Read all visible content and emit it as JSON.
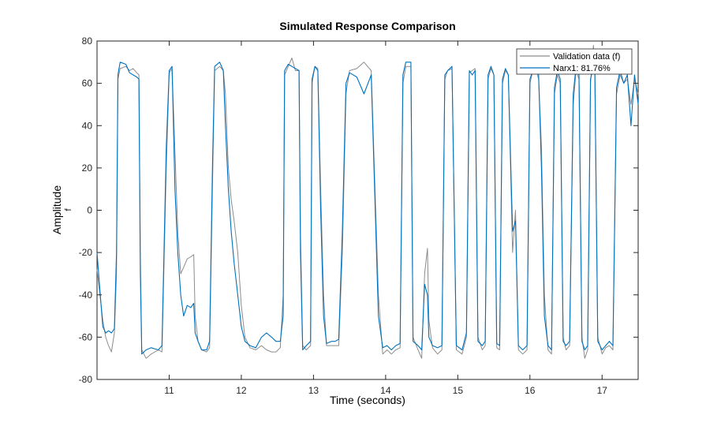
{
  "chart_data": {
    "type": "line",
    "title": "Simulated Response Comparison",
    "xlabel": "Time (seconds)",
    "ylabel": "Amplitude",
    "ylabel_sub": "f",
    "xlim": [
      10,
      17.5
    ],
    "ylim": [
      -80,
      80
    ],
    "x_ticks": [
      11,
      12,
      13,
      14,
      15,
      16,
      17
    ],
    "y_ticks": [
      -80,
      -60,
      -40,
      -20,
      0,
      20,
      40,
      60,
      80
    ],
    "grid": false,
    "legend_position": "top-right",
    "colors": {
      "validation": "#8c8c8c",
      "narx": "#0072bd",
      "axes": "#262626"
    },
    "series": [
      {
        "name": "Validation data (f)",
        "color": "#8c8c8c",
        "points": [
          [
            10.0,
            -28
          ],
          [
            10.04,
            -40
          ],
          [
            10.08,
            -52
          ],
          [
            10.12,
            -60
          ],
          [
            10.16,
            -64
          ],
          [
            10.2,
            -67
          ],
          [
            10.24,
            -58
          ],
          [
            10.27,
            -30
          ],
          [
            10.29,
            62
          ],
          [
            10.32,
            67
          ],
          [
            10.4,
            68
          ],
          [
            10.45,
            66
          ],
          [
            10.5,
            67
          ],
          [
            10.55,
            65
          ],
          [
            10.58,
            64
          ],
          [
            10.6,
            -20
          ],
          [
            10.62,
            -66
          ],
          [
            10.68,
            -70
          ],
          [
            10.75,
            -68
          ],
          [
            10.85,
            -66
          ],
          [
            10.9,
            -67
          ],
          [
            10.96,
            20
          ],
          [
            11.0,
            65
          ],
          [
            11.04,
            67
          ],
          [
            11.08,
            28
          ],
          [
            11.12,
            -10
          ],
          [
            11.16,
            -30
          ],
          [
            11.2,
            -27
          ],
          [
            11.25,
            -23
          ],
          [
            11.3,
            -22
          ],
          [
            11.34,
            -21
          ],
          [
            11.36,
            -50
          ],
          [
            11.4,
            -62
          ],
          [
            11.45,
            -66
          ],
          [
            11.52,
            -67
          ],
          [
            11.56,
            -65
          ],
          [
            11.6,
            10
          ],
          [
            11.63,
            66
          ],
          [
            11.7,
            68
          ],
          [
            11.75,
            66
          ],
          [
            11.78,
            55
          ],
          [
            11.82,
            20
          ],
          [
            11.86,
            5
          ],
          [
            11.9,
            -5
          ],
          [
            11.95,
            -20
          ],
          [
            12.0,
            -45
          ],
          [
            12.05,
            -60
          ],
          [
            12.12,
            -65
          ],
          [
            12.2,
            -66
          ],
          [
            12.28,
            -64
          ],
          [
            12.35,
            -66
          ],
          [
            12.42,
            -67
          ],
          [
            12.48,
            -67
          ],
          [
            12.54,
            -65
          ],
          [
            12.58,
            -40
          ],
          [
            12.6,
            64
          ],
          [
            12.65,
            68
          ],
          [
            12.7,
            72
          ],
          [
            12.75,
            66
          ],
          [
            12.8,
            66
          ],
          [
            12.82,
            -10
          ],
          [
            12.85,
            -64
          ],
          [
            12.9,
            -66
          ],
          [
            12.96,
            -64
          ],
          [
            12.98,
            60
          ],
          [
            13.02,
            68
          ],
          [
            13.06,
            67
          ],
          [
            13.1,
            10
          ],
          [
            13.14,
            -40
          ],
          [
            13.18,
            -64
          ],
          [
            13.25,
            -64
          ],
          [
            13.3,
            -64
          ],
          [
            13.35,
            -64
          ],
          [
            13.4,
            -20
          ],
          [
            13.45,
            55
          ],
          [
            13.5,
            66
          ],
          [
            13.6,
            67
          ],
          [
            13.7,
            70
          ],
          [
            13.8,
            66
          ],
          [
            13.9,
            -40
          ],
          [
            13.96,
            -68
          ],
          [
            14.02,
            -66
          ],
          [
            14.08,
            -68
          ],
          [
            14.14,
            -66
          ],
          [
            14.2,
            -65
          ],
          [
            14.24,
            60
          ],
          [
            14.28,
            68
          ],
          [
            14.35,
            68
          ],
          [
            14.38,
            -60
          ],
          [
            14.45,
            -66
          ],
          [
            14.5,
            -70
          ],
          [
            14.54,
            -30
          ],
          [
            14.58,
            -18
          ],
          [
            14.6,
            -52
          ],
          [
            14.65,
            -65
          ],
          [
            14.72,
            -68
          ],
          [
            14.78,
            -66
          ],
          [
            14.82,
            62
          ],
          [
            14.86,
            66
          ],
          [
            14.92,
            67
          ],
          [
            14.98,
            -66
          ],
          [
            15.06,
            -68
          ],
          [
            15.12,
            -60
          ],
          [
            15.16,
            65
          ],
          [
            15.2,
            66
          ],
          [
            15.24,
            67
          ],
          [
            15.28,
            -60
          ],
          [
            15.34,
            -66
          ],
          [
            15.38,
            -64
          ],
          [
            15.42,
            62
          ],
          [
            15.46,
            67
          ],
          [
            15.5,
            64
          ],
          [
            15.54,
            -65
          ],
          [
            15.58,
            -66
          ],
          [
            15.62,
            60
          ],
          [
            15.66,
            66
          ],
          [
            15.7,
            64
          ],
          [
            15.76,
            -20
          ],
          [
            15.8,
            0
          ],
          [
            15.84,
            -66
          ],
          [
            15.9,
            -68
          ],
          [
            15.96,
            -66
          ],
          [
            16.0,
            60
          ],
          [
            16.04,
            66
          ],
          [
            16.08,
            67
          ],
          [
            16.12,
            62
          ],
          [
            16.16,
            30
          ],
          [
            16.2,
            -40
          ],
          [
            16.25,
            -66
          ],
          [
            16.3,
            -68
          ],
          [
            16.34,
            55
          ],
          [
            16.38,
            64
          ],
          [
            16.42,
            60
          ],
          [
            16.46,
            -60
          ],
          [
            16.5,
            -66
          ],
          [
            16.55,
            -64
          ],
          [
            16.6,
            50
          ],
          [
            16.64,
            66
          ],
          [
            16.68,
            62
          ],
          [
            16.72,
            -60
          ],
          [
            16.76,
            -70
          ],
          [
            16.8,
            -66
          ],
          [
            16.84,
            60
          ],
          [
            16.88,
            78
          ],
          [
            16.9,
            64
          ],
          [
            16.94,
            -60
          ],
          [
            17.0,
            -68
          ],
          [
            17.05,
            -65
          ],
          [
            17.1,
            -64
          ],
          [
            17.15,
            -66
          ],
          [
            17.2,
            55
          ],
          [
            17.25,
            64
          ],
          [
            17.3,
            60
          ],
          [
            17.35,
            62
          ],
          [
            17.4,
            50
          ],
          [
            17.45,
            62
          ],
          [
            17.5,
            55
          ]
        ]
      },
      {
        "name": "Narx1: 81.76%",
        "color": "#0072bd",
        "points": [
          [
            10.0,
            -20
          ],
          [
            10.04,
            -38
          ],
          [
            10.08,
            -55
          ],
          [
            10.12,
            -58
          ],
          [
            10.16,
            -57
          ],
          [
            10.2,
            -58
          ],
          [
            10.24,
            -56
          ],
          [
            10.27,
            -20
          ],
          [
            10.29,
            64
          ],
          [
            10.32,
            70
          ],
          [
            10.4,
            69
          ],
          [
            10.45,
            65
          ],
          [
            10.5,
            64
          ],
          [
            10.55,
            63
          ],
          [
            10.58,
            62
          ],
          [
            10.6,
            -30
          ],
          [
            10.62,
            -68
          ],
          [
            10.68,
            -66
          ],
          [
            10.75,
            -65
          ],
          [
            10.85,
            -66
          ],
          [
            10.9,
            -64
          ],
          [
            10.96,
            30
          ],
          [
            11.0,
            66
          ],
          [
            11.04,
            68
          ],
          [
            11.08,
            10
          ],
          [
            11.12,
            -20
          ],
          [
            11.16,
            -40
          ],
          [
            11.2,
            -50
          ],
          [
            11.25,
            -45
          ],
          [
            11.3,
            -46
          ],
          [
            11.34,
            -44
          ],
          [
            11.36,
            -58
          ],
          [
            11.4,
            -62
          ],
          [
            11.45,
            -66
          ],
          [
            11.52,
            -66
          ],
          [
            11.56,
            -62
          ],
          [
            11.6,
            20
          ],
          [
            11.63,
            68
          ],
          [
            11.7,
            70
          ],
          [
            11.75,
            66
          ],
          [
            11.78,
            40
          ],
          [
            11.82,
            10
          ],
          [
            11.86,
            -10
          ],
          [
            11.9,
            -25
          ],
          [
            11.95,
            -40
          ],
          [
            12.0,
            -55
          ],
          [
            12.05,
            -62
          ],
          [
            12.12,
            -64
          ],
          [
            12.2,
            -65
          ],
          [
            12.28,
            -60
          ],
          [
            12.35,
            -58
          ],
          [
            12.42,
            -60
          ],
          [
            12.48,
            -62
          ],
          [
            12.54,
            -62
          ],
          [
            12.58,
            -50
          ],
          [
            12.6,
            66
          ],
          [
            12.65,
            69
          ],
          [
            12.7,
            68
          ],
          [
            12.75,
            67
          ],
          [
            12.8,
            66
          ],
          [
            12.82,
            -20
          ],
          [
            12.85,
            -66
          ],
          [
            12.9,
            -64
          ],
          [
            12.96,
            -62
          ],
          [
            12.98,
            62
          ],
          [
            13.02,
            68
          ],
          [
            13.06,
            66
          ],
          [
            13.1,
            0
          ],
          [
            13.14,
            -50
          ],
          [
            13.18,
            -63
          ],
          [
            13.25,
            -62
          ],
          [
            13.3,
            -62
          ],
          [
            13.35,
            -61
          ],
          [
            13.4,
            -10
          ],
          [
            13.45,
            60
          ],
          [
            13.5,
            65
          ],
          [
            13.6,
            63
          ],
          [
            13.7,
            55
          ],
          [
            13.8,
            64
          ],
          [
            13.9,
            -50
          ],
          [
            13.96,
            -65
          ],
          [
            14.02,
            -64
          ],
          [
            14.08,
            -66
          ],
          [
            14.14,
            -64
          ],
          [
            14.2,
            -63
          ],
          [
            14.24,
            64
          ],
          [
            14.28,
            70
          ],
          [
            14.35,
            70
          ],
          [
            14.38,
            -62
          ],
          [
            14.45,
            -64
          ],
          [
            14.5,
            -66
          ],
          [
            14.54,
            -35
          ],
          [
            14.58,
            -40
          ],
          [
            14.6,
            -60
          ],
          [
            14.65,
            -64
          ],
          [
            14.72,
            -65
          ],
          [
            14.78,
            -64
          ],
          [
            14.82,
            64
          ],
          [
            14.86,
            66
          ],
          [
            14.92,
            68
          ],
          [
            14.98,
            -64
          ],
          [
            15.06,
            -66
          ],
          [
            15.12,
            -58
          ],
          [
            15.16,
            66
          ],
          [
            15.2,
            64
          ],
          [
            15.24,
            66
          ],
          [
            15.28,
            -62
          ],
          [
            15.34,
            -64
          ],
          [
            15.38,
            -62
          ],
          [
            15.42,
            64
          ],
          [
            15.46,
            68
          ],
          [
            15.5,
            64
          ],
          [
            15.54,
            -63
          ],
          [
            15.58,
            -64
          ],
          [
            15.62,
            62
          ],
          [
            15.66,
            67
          ],
          [
            15.7,
            64
          ],
          [
            15.76,
            -10
          ],
          [
            15.8,
            -5
          ],
          [
            15.84,
            -64
          ],
          [
            15.9,
            -66
          ],
          [
            15.96,
            -64
          ],
          [
            16.0,
            62
          ],
          [
            16.04,
            66
          ],
          [
            16.08,
            68
          ],
          [
            16.12,
            64
          ],
          [
            16.16,
            20
          ],
          [
            16.2,
            -50
          ],
          [
            16.25,
            -64
          ],
          [
            16.3,
            -66
          ],
          [
            16.34,
            58
          ],
          [
            16.38,
            66
          ],
          [
            16.42,
            62
          ],
          [
            16.46,
            -62
          ],
          [
            16.5,
            -64
          ],
          [
            16.55,
            -62
          ],
          [
            16.6,
            55
          ],
          [
            16.64,
            68
          ],
          [
            16.68,
            64
          ],
          [
            16.72,
            -62
          ],
          [
            16.76,
            -66
          ],
          [
            16.8,
            -64
          ],
          [
            16.84,
            62
          ],
          [
            16.88,
            68
          ],
          [
            16.9,
            66
          ],
          [
            16.94,
            -62
          ],
          [
            17.0,
            -66
          ],
          [
            17.05,
            -64
          ],
          [
            17.1,
            -62
          ],
          [
            17.15,
            -64
          ],
          [
            17.2,
            58
          ],
          [
            17.25,
            66
          ],
          [
            17.3,
            60
          ],
          [
            17.35,
            64
          ],
          [
            17.4,
            40
          ],
          [
            17.45,
            64
          ],
          [
            17.5,
            50
          ]
        ]
      }
    ]
  }
}
